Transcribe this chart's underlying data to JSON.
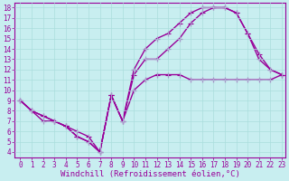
{
  "xlabel": "Windchill (Refroidissement éolien,°C)",
  "bg_color": "#c8eef0",
  "line_color": "#990099",
  "grid_color": "#aadddd",
  "line1_x": [
    0,
    1,
    2,
    3,
    4,
    5,
    6,
    7,
    8,
    9,
    10,
    11,
    12,
    13,
    14,
    15,
    16,
    17,
    18,
    19,
    20,
    21,
    22,
    23
  ],
  "line1_y": [
    9,
    8,
    7,
    7,
    6.5,
    6,
    5.5,
    4,
    9.5,
    7,
    10,
    11,
    11.5,
    11.5,
    11.5,
    11,
    11,
    11,
    11,
    11,
    11,
    11,
    11,
    11.5
  ],
  "line2_x": [
    0,
    1,
    2,
    3,
    4,
    5,
    6,
    7,
    8,
    9,
    10,
    11,
    12,
    13,
    14,
    15,
    16,
    17,
    18,
    19,
    20,
    21,
    22,
    23
  ],
  "line2_y": [
    9,
    8,
    7.5,
    7,
    6.5,
    5.5,
    5,
    4,
    9.5,
    7,
    11.5,
    13,
    13,
    14,
    15,
    16.5,
    17.5,
    18,
    18,
    17.5,
    15.5,
    13,
    12,
    11.5
  ],
  "line3_x": [
    0,
    1,
    2,
    3,
    4,
    5,
    6,
    7,
    8,
    9,
    10,
    11,
    12,
    13,
    14,
    15,
    16,
    17,
    18,
    19,
    20,
    21,
    22,
    23
  ],
  "line3_y": [
    9,
    8,
    7.5,
    7,
    6.5,
    5.5,
    5,
    4,
    9.5,
    7,
    12,
    14,
    15,
    15.5,
    16.5,
    17.5,
    18,
    18,
    18,
    17.5,
    15.5,
    13.5,
    12,
    11.5
  ],
  "xlim": [
    -0.5,
    23.3
  ],
  "ylim": [
    3.5,
    18.5
  ],
  "xticks": [
    0,
    1,
    2,
    3,
    4,
    5,
    6,
    7,
    8,
    9,
    10,
    11,
    12,
    13,
    14,
    15,
    16,
    17,
    18,
    19,
    20,
    21,
    22,
    23
  ],
  "yticks": [
    4,
    5,
    6,
    7,
    8,
    9,
    10,
    11,
    12,
    13,
    14,
    15,
    16,
    17,
    18
  ],
  "tick_fontsize": 5.5,
  "label_fontsize": 6.5,
  "linewidth": 1.0,
  "markersize": 4
}
